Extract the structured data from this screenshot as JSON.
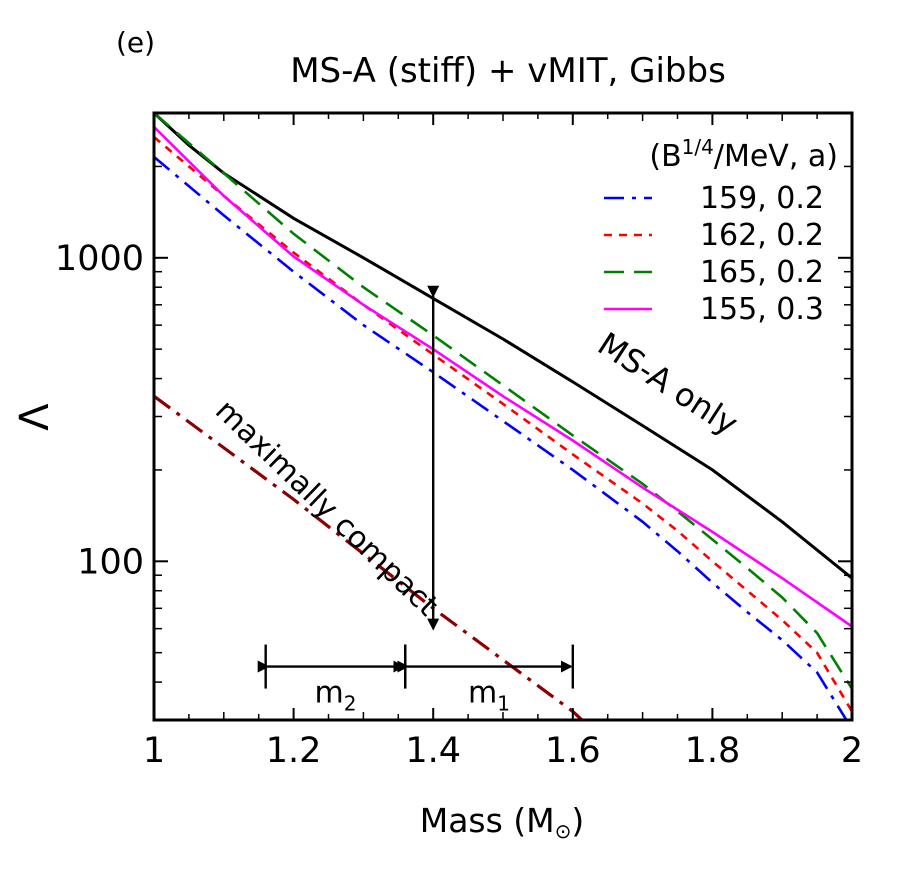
{
  "panel_label": "(e)",
  "chart_data": {
    "type": "line",
    "title": "MS-A (stiff) + vMIT, Gibbs",
    "xlabel": "Mass (M",
    "xlabel_symbol": "⊙",
    "xlabel_close": ")",
    "ylabel": "Λ",
    "xlim": [
      1,
      2
    ],
    "ylim": [
      30,
      3000
    ],
    "y_scale": "log",
    "x_ticks": [
      1,
      1.2,
      1.4,
      1.6,
      1.8,
      2
    ],
    "x_tick_labels": [
      "1",
      "1.2",
      "1.4",
      "1.6",
      "1.8",
      "2"
    ],
    "y_ticks": [
      100,
      1000
    ],
    "y_tick_labels": [
      "100",
      "1000"
    ],
    "legend": {
      "title_prefix": "(B",
      "title_sup": "1/4",
      "title_suffix": "/MeV, a)",
      "position": "top-right"
    },
    "series": [
      {
        "name": "MS-A only",
        "color": "#000000",
        "style": "solid",
        "in_legend": false,
        "x": [
          1.0,
          1.05,
          1.1,
          1.2,
          1.3,
          1.4,
          1.5,
          1.6,
          1.7,
          1.8,
          1.9,
          2.0
        ],
        "y": [
          3000,
          2350,
          1900,
          1350,
          1000,
          735,
          540,
          390,
          280,
          200,
          135,
          88
        ]
      },
      {
        "name": "159, 0.2",
        "color": "#0000ff",
        "style": "dash-dot",
        "in_legend": true,
        "x": [
          1.0,
          1.1,
          1.2,
          1.3,
          1.4,
          1.5,
          1.6,
          1.7,
          1.75,
          1.8,
          1.85,
          1.9,
          1.95,
          2.0
        ],
        "y": [
          2150,
          1380,
          900,
          600,
          420,
          290,
          200,
          135,
          108,
          85,
          68,
          55,
          43,
          28
        ]
      },
      {
        "name": "162, 0.2",
        "color": "#ff0000",
        "style": "dotted",
        "in_legend": true,
        "x": [
          1.0,
          1.1,
          1.2,
          1.3,
          1.4,
          1.5,
          1.6,
          1.7,
          1.75,
          1.8,
          1.85,
          1.9,
          1.95,
          2.0
        ],
        "y": [
          2500,
          1600,
          1040,
          700,
          480,
          330,
          225,
          155,
          126,
          100,
          80,
          64,
          50,
          32
        ]
      },
      {
        "name": "165, 0.2",
        "color": "#008000",
        "style": "dashed",
        "in_legend": true,
        "x": [
          1.0,
          1.1,
          1.2,
          1.3,
          1.4,
          1.5,
          1.6,
          1.7,
          1.75,
          1.8,
          1.85,
          1.9,
          1.95,
          2.0
        ],
        "y": [
          3000,
          1900,
          1200,
          800,
          555,
          380,
          260,
          180,
          146,
          118,
          95,
          76,
          58,
          38
        ]
      },
      {
        "name": "155, 0.3",
        "color": "#ff00ff",
        "style": "solid",
        "in_legend": true,
        "x": [
          1.0,
          1.1,
          1.2,
          1.3,
          1.4,
          1.5,
          1.6,
          1.7,
          1.8,
          1.9,
          2.0
        ],
        "y": [
          2700,
          1600,
          1010,
          700,
          500,
          350,
          250,
          175,
          125,
          88,
          61
        ]
      },
      {
        "name": "maximally compact",
        "color": "#8b0000",
        "style": "dash-dot",
        "in_legend": false,
        "x": [
          1.0,
          1.2,
          1.4,
          1.6,
          1.65
        ],
        "y": [
          350,
          160,
          70,
          32,
          25
        ]
      }
    ],
    "annotations": {
      "curve_label_msa": "MS-A only",
      "curve_label_compact": "maximally compact",
      "m2_base": "m",
      "m2_sub": "2",
      "m1_base": "m",
      "m1_sub": "1",
      "arrow": {
        "x": 1.4,
        "y_from": 750,
        "y_to": 60
      },
      "m2_range": {
        "from": 1.16,
        "to": 1.36,
        "y": 45
      },
      "m1_range": {
        "from": 1.36,
        "to": 1.6,
        "y": 45
      }
    }
  }
}
